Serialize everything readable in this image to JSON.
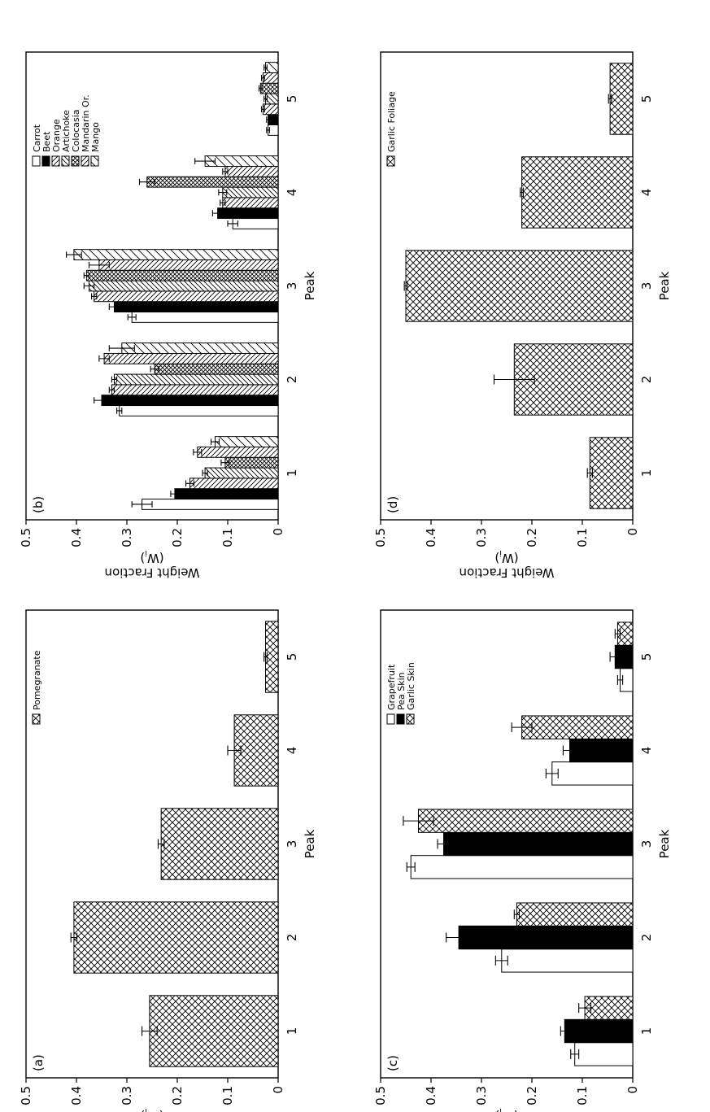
{
  "chart_data": [
    {
      "panel": "(a)",
      "type": "bar",
      "categories": [
        "1",
        "2",
        "3",
        "4",
        "5"
      ],
      "series": [
        {
          "name": "Pomegranate",
          "pattern": "crosshatch",
          "values": [
            0.255,
            0.405,
            0.232,
            0.087,
            0.025
          ],
          "errors": [
            0.015,
            0.006,
            0.006,
            0.013,
            0.003
          ]
        }
      ],
      "xlabel": "Peak",
      "ylabel": "Weight Fraction",
      "ylabel2": "(W",
      "ylabel_sub": "i",
      "ylim": [
        0,
        0.5
      ],
      "yticks": [
        "0",
        "0.1",
        "0.2",
        "0.3",
        "0.4",
        "0.5"
      ],
      "legend_position": "top-right"
    },
    {
      "panel": "(b)",
      "type": "bar",
      "categories": [
        "1",
        "2",
        "3",
        "4",
        "5"
      ],
      "series": [
        {
          "name": "Carrot",
          "pattern": "white",
          "values": [
            0.27,
            0.315,
            0.29,
            0.09,
            0.02
          ],
          "errors": [
            0.02,
            0.005,
            0.008,
            0.01,
            0.003
          ]
        },
        {
          "name": "Beet",
          "pattern": "black",
          "values": [
            0.205,
            0.35,
            0.325,
            0.12,
            0.02
          ],
          "errors": [
            0.008,
            0.015,
            0.01,
            0.01,
            0.003
          ]
        },
        {
          "name": "Orange",
          "pattern": "diag-back",
          "values": [
            0.175,
            0.33,
            0.365,
            0.11,
            0.03
          ],
          "errors": [
            0.008,
            0.005,
            0.005,
            0.005,
            0.003
          ]
        },
        {
          "name": "Artichoke",
          "pattern": "diag-fwd",
          "values": [
            0.145,
            0.325,
            0.375,
            0.11,
            0.025
          ],
          "errors": [
            0.005,
            0.005,
            0.01,
            0.008,
            0.003
          ]
        },
        {
          "name": "Colocasia",
          "pattern": "dense-cross",
          "values": [
            0.105,
            0.245,
            0.38,
            0.26,
            0.035
          ],
          "errors": [
            0.008,
            0.008,
            0.005,
            0.015,
            0.003
          ]
        },
        {
          "name": "Mandarin Or.",
          "pattern": "diag-back",
          "values": [
            0.16,
            0.345,
            0.355,
            0.105,
            0.03
          ],
          "errors": [
            0.008,
            0.01,
            0.02,
            0.005,
            0.003
          ]
        },
        {
          "name": "Mango",
          "pattern": "diag-fwd-wide",
          "values": [
            0.125,
            0.31,
            0.405,
            0.145,
            0.025
          ],
          "errors": [
            0.008,
            0.025,
            0.015,
            0.02,
            0.003
          ]
        }
      ],
      "xlabel": "Peak",
      "ylabel": "Weight Fraction",
      "ylabel2": "(W",
      "ylabel_sub": "i",
      "ylim": [
        0,
        0.5
      ],
      "yticks": [
        "0",
        "0.1",
        "0.2",
        "0.3",
        "0.4",
        "0.5"
      ],
      "legend_position": "top-right"
    },
    {
      "panel": "(c)",
      "type": "bar",
      "categories": [
        "1",
        "2",
        "3",
        "4",
        "5"
      ],
      "series": [
        {
          "name": "Grapefruit",
          "pattern": "white",
          "values": [
            0.115,
            0.26,
            0.44,
            0.16,
            0.025
          ],
          "errors": [
            0.008,
            0.012,
            0.008,
            0.012,
            0.005
          ]
        },
        {
          "name": "Pea Skin",
          "pattern": "black",
          "values": [
            0.135,
            0.345,
            0.375,
            0.125,
            0.035
          ],
          "errors": [
            0.008,
            0.025,
            0.012,
            0.013,
            0.01
          ]
        },
        {
          "name": "Garlic Skin",
          "pattern": "crosshatch",
          "values": [
            0.095,
            0.23,
            0.425,
            0.22,
            0.03
          ],
          "errors": [
            0.012,
            0.005,
            0.03,
            0.02,
            0.005
          ]
        }
      ],
      "xlabel": "Peak",
      "ylabel": "Weight Fraction",
      "ylabel2": "(W",
      "ylabel_sub": "i",
      "ylim": [
        0,
        0.5
      ],
      "yticks": [
        "0",
        "0.1",
        "0.2",
        "0.3",
        "0.4",
        "0.5"
      ],
      "legend_position": "top-right"
    },
    {
      "panel": "(d)",
      "type": "bar",
      "categories": [
        "1",
        "2",
        "3",
        "4",
        "5"
      ],
      "series": [
        {
          "name": "Garlic Foliage",
          "pattern": "crosshatch",
          "values": [
            0.085,
            0.235,
            0.45,
            0.22,
            0.045
          ],
          "errors": [
            0.005,
            0.04,
            0.003,
            0.003,
            0.003
          ]
        }
      ],
      "xlabel": "Peak",
      "ylabel": "Weight Fraction",
      "ylabel2": "(W",
      "ylabel_sub": "i",
      "ylim": [
        0,
        0.5
      ],
      "yticks": [
        "0",
        "0.1",
        "0.2",
        "0.3",
        "0.4",
        "0.5"
      ],
      "legend_position": "top-right"
    }
  ]
}
